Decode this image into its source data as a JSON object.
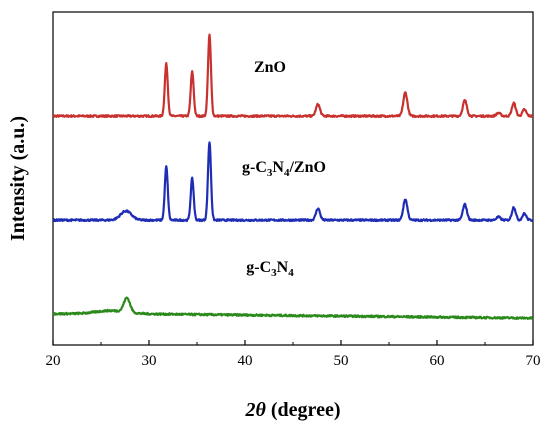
{
  "chart_data": {
    "type": "line",
    "xlabel_main": "2θ",
    "xlabel_unit": " (degree)",
    "ylabel": "Intensity (a.u.)",
    "xlim": [
      20,
      70
    ],
    "x_ticks": [
      20,
      30,
      40,
      50,
      60,
      70
    ],
    "y_ticks": [],
    "grid": false,
    "legend": "inline labels above each trace",
    "series": [
      {
        "name": "ZnO",
        "color": "#c8312d",
        "baseline": 8.8,
        "peaks": [
          {
            "x": 31.8,
            "h": 2.0,
            "w": 0.22
          },
          {
            "x": 34.5,
            "h": 1.7,
            "w": 0.22
          },
          {
            "x": 36.3,
            "h": 3.1,
            "w": 0.22
          },
          {
            "x": 47.6,
            "h": 0.45,
            "w": 0.3
          },
          {
            "x": 56.7,
            "h": 0.9,
            "w": 0.3
          },
          {
            "x": 62.9,
            "h": 0.6,
            "w": 0.3
          },
          {
            "x": 66.4,
            "h": 0.12,
            "w": 0.3
          },
          {
            "x": 68.0,
            "h": 0.5,
            "w": 0.28
          },
          {
            "x": 69.1,
            "h": 0.25,
            "w": 0.28
          }
        ],
        "hump": null
      },
      {
        "name": "g-C₃N₄/ZnO",
        "label_parts": [
          "g-C",
          "3",
          "N",
          "4",
          "/ZnO"
        ],
        "color": "#1f2db4",
        "baseline": 4.8,
        "peaks": [
          {
            "x": 31.8,
            "h": 2.05,
            "w": 0.22
          },
          {
            "x": 34.5,
            "h": 1.6,
            "w": 0.22
          },
          {
            "x": 36.3,
            "h": 3.0,
            "w": 0.22
          },
          {
            "x": 47.6,
            "h": 0.45,
            "w": 0.3
          },
          {
            "x": 56.7,
            "h": 0.8,
            "w": 0.3
          },
          {
            "x": 62.9,
            "h": 0.6,
            "w": 0.3
          },
          {
            "x": 66.4,
            "h": 0.12,
            "w": 0.3
          },
          {
            "x": 68.0,
            "h": 0.5,
            "w": 0.28
          },
          {
            "x": 69.1,
            "h": 0.25,
            "w": 0.28
          }
        ],
        "hump": {
          "x": 27.6,
          "h": 0.35,
          "w": 0.8
        }
      },
      {
        "name": "g-C₃N₄",
        "label_parts": [
          "g-C",
          "3",
          "N",
          "4",
          ""
        ],
        "color": "#2c8a1c",
        "baseline": 1.2,
        "peaks": [
          {
            "x": 27.7,
            "h": 0.55,
            "w": 0.45
          }
        ],
        "hump": {
          "x": 26.0,
          "h": 0.12,
          "w": 2.2
        }
      }
    ]
  }
}
